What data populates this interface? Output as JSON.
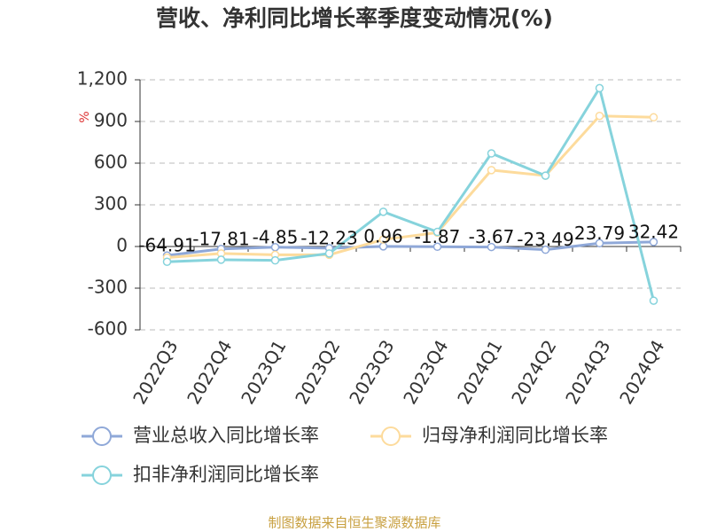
{
  "chart_data": {
    "type": "line",
    "title": "营收、净利同比增长率季度变动情况(%)",
    "y_label": "%",
    "source": "制图数据来自恒生聚源数据库",
    "categories": [
      "2022Q3",
      "2022Q4",
      "2023Q1",
      "2023Q2",
      "2023Q3",
      "2023Q4",
      "2024Q1",
      "2024Q2",
      "2024Q3",
      "2024Q4"
    ],
    "series": [
      {
        "name": "营业总收入同比增长率",
        "color": "#8fa8d8",
        "values": [
          -64.91,
          -17.81,
          -4.85,
          -12.23,
          0.96,
          -1.87,
          -3.67,
          -23.49,
          23.79,
          32.42
        ],
        "show_labels": true
      },
      {
        "name": "归母净利润同比增长率",
        "color": "#fddb9c",
        "values": [
          -80,
          -50,
          -60,
          -60,
          50,
          100,
          550,
          510,
          940,
          930
        ]
      },
      {
        "name": "扣非净利润同比增长率",
        "color": "#86d3dc",
        "values": [
          -110,
          -95,
          -100,
          -50,
          250,
          105,
          670,
          510,
          1140,
          -390
        ]
      }
    ],
    "ylim": [
      -600,
      1200
    ],
    "yticks": [
      -600,
      -300,
      0,
      300,
      600,
      900,
      {
        "value": 1200,
        "label": "1,200"
      }
    ],
    "grid": true
  }
}
